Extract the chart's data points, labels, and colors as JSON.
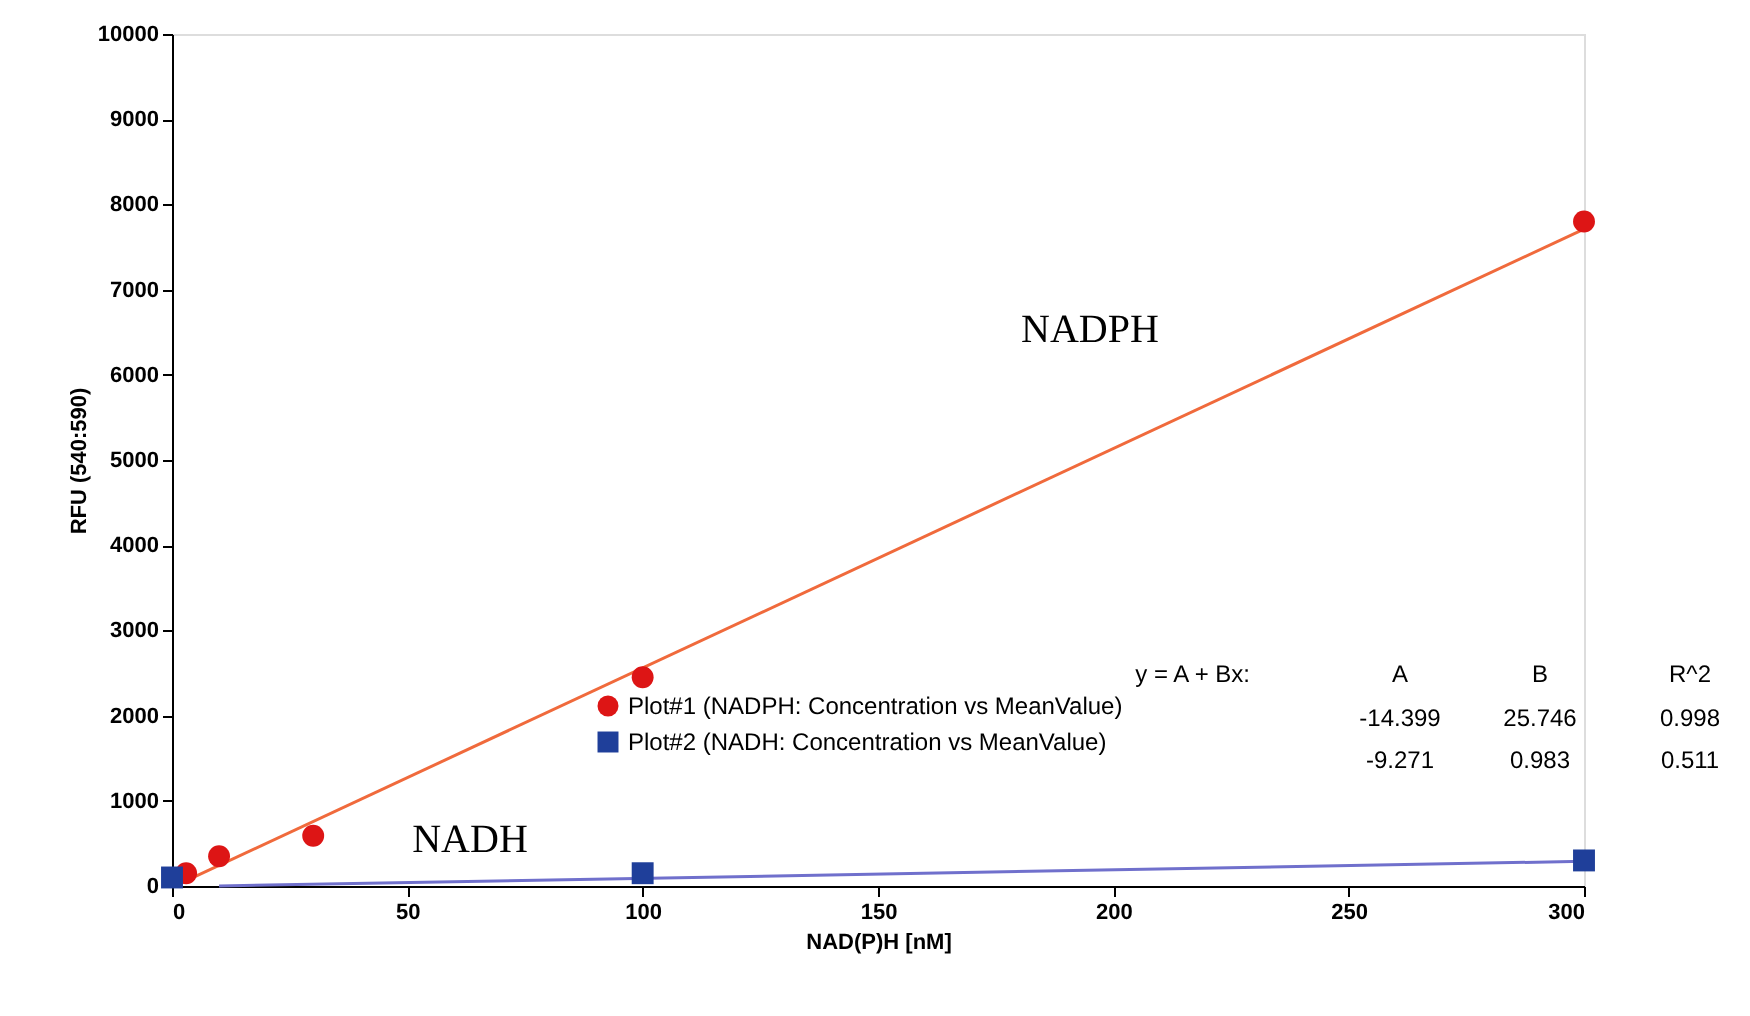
{
  "chart_data": {
    "type": "scatter",
    "xlabel": "NAD(P)H [nM]",
    "ylabel": "RFU (540:590)",
    "xlim": [
      0,
      300
    ],
    "xticks": [
      0,
      50,
      100,
      150,
      200,
      250,
      300
    ],
    "ylim": [
      0,
      10000
    ],
    "yticks": [
      0,
      1000,
      2000,
      3000,
      4000,
      5000,
      6000,
      7000,
      8000,
      9000,
      10000
    ],
    "grid": false,
    "legend": "bottom right",
    "series": [
      {
        "type": "line",
        "color": "#f06a3c",
        "x": [
          1,
          300
        ],
        "values": [
          10,
          7710
        ]
      },
      {
        "type": "line",
        "color": "#7070cc",
        "x": [
          10,
          300
        ],
        "values": [
          0,
          290
        ]
      },
      {
        "name": "Plot#1 (NADPH: Concentration vs MeanValue)",
        "color": "#dd1515",
        "marker": "circle",
        "x": [
          3,
          10,
          30,
          100,
          300
        ],
        "values": [
          150,
          350,
          590,
          2450,
          7800
        ]
      },
      {
        "name": "Plot#2 (NADH: Concentration vs MeanValue)",
        "color": "#1f3f9a",
        "marker": "square",
        "x": [
          0,
          100,
          300
        ],
        "values": [
          100,
          150,
          300
        ]
      }
    ],
    "annotations": [
      "y = A + Bx:",
      "A",
      "B",
      "R^2",
      "-14.399",
      "25.746",
      "0.998",
      "-9.271",
      "0.983",
      "0.511",
      "NADPH",
      "NADH"
    ]
  }
}
